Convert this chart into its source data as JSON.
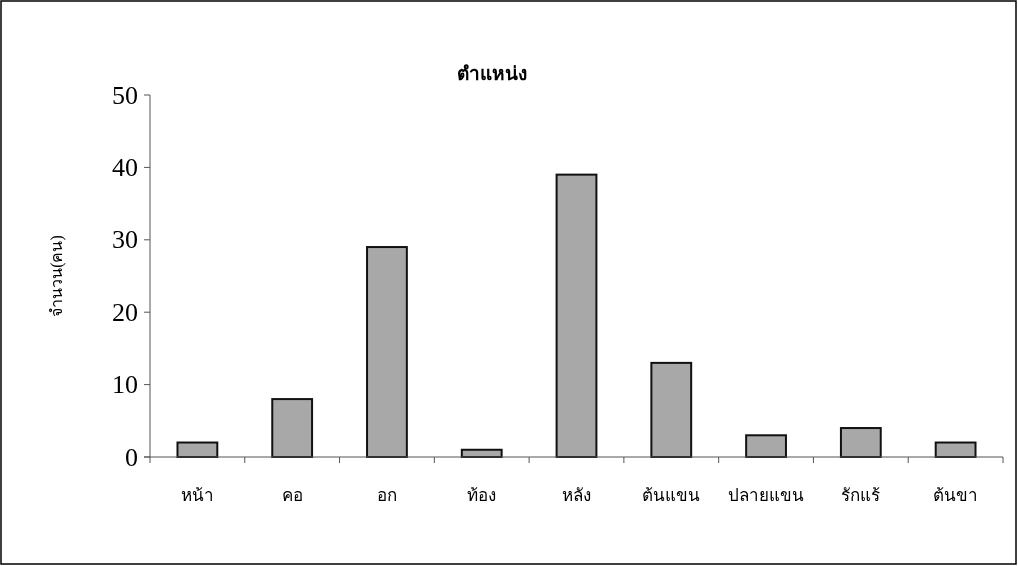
{
  "chart_data": {
    "type": "bar",
    "title": "ตำแหน่ง",
    "ylabel": "จำนวน(คน)",
    "categories": [
      "หน้า",
      "คอ",
      "อก",
      "ท้อง",
      "หลัง",
      "ต้นแขน",
      "ปลายแขน",
      "รักแร้",
      "ต้นขา"
    ],
    "values": [
      2,
      8,
      29,
      1,
      39,
      13,
      3,
      4,
      2
    ],
    "color": "#a8a8a8",
    "ylim": [
      0,
      50
    ],
    "yticks": [
      0,
      10,
      20,
      30,
      40,
      50
    ],
    "grid": false
  }
}
